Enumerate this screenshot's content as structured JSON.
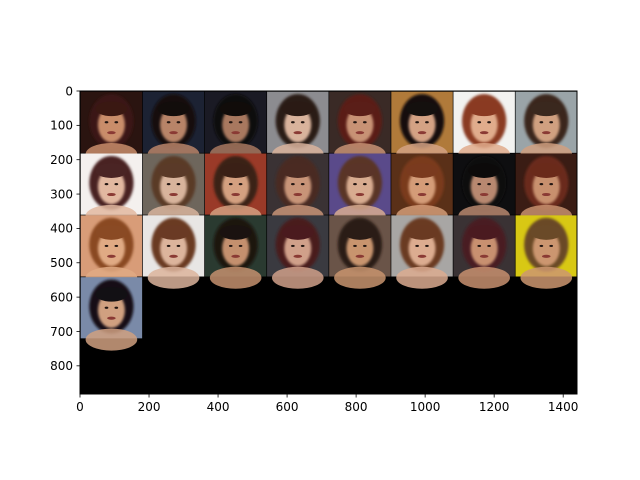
{
  "chart_data": {
    "type": "image_grid",
    "title": "",
    "xlabel": "",
    "ylabel": "",
    "xlim": [
      0,
      1440
    ],
    "ylim": [
      882,
      0
    ],
    "x_ticks": [
      0,
      200,
      400,
      600,
      800,
      1000,
      1200,
      1400
    ],
    "y_ticks": [
      0,
      100,
      200,
      300,
      400,
      500,
      600,
      700,
      800
    ],
    "grid": false,
    "grid_layout": {
      "columns": 8,
      "rows": 4,
      "tile_size": 180,
      "padding": 2,
      "images_shown": 25,
      "empty_cells_color": "#000000"
    },
    "tiles": [
      {
        "row": 0,
        "col": 0,
        "bg": "#2a1410",
        "skin": "#c98d6b",
        "hair": "#3a1812"
      },
      {
        "row": 0,
        "col": 1,
        "bg": "#1c2233",
        "skin": "#b88468",
        "hair": "#120d0b"
      },
      {
        "row": 0,
        "col": 2,
        "bg": "#1a1a24",
        "skin": "#a8785f",
        "hair": "#110c0a"
      },
      {
        "row": 0,
        "col": 3,
        "bg": "#8c8c90",
        "skin": "#d9b39c",
        "hair": "#2a1a14"
      },
      {
        "row": 0,
        "col": 4,
        "bg": "#3a2a26",
        "skin": "#c89274",
        "hair": "#5a1e18"
      },
      {
        "row": 0,
        "col": 5,
        "bg": "#b07a3a",
        "skin": "#d4a284",
        "hair": "#14100e"
      },
      {
        "row": 0,
        "col": 6,
        "bg": "#f2f2f0",
        "skin": "#e0ac8c",
        "hair": "#8a3a22"
      },
      {
        "row": 0,
        "col": 7,
        "bg": "#9aa4a8",
        "skin": "#d0a080",
        "hair": "#3a281e"
      },
      {
        "row": 1,
        "col": 0,
        "bg": "#f4f0ee",
        "skin": "#e2b8a0",
        "hair": "#4a2424"
      },
      {
        "row": 1,
        "col": 1,
        "bg": "#6e665c",
        "skin": "#d8b49c",
        "hair": "#5a3a28"
      },
      {
        "row": 1,
        "col": 2,
        "bg": "#9a3a28",
        "skin": "#d4a080",
        "hair": "#3a2016"
      },
      {
        "row": 1,
        "col": 3,
        "bg": "#3a3234",
        "skin": "#c89478",
        "hair": "#4a2a22"
      },
      {
        "row": 1,
        "col": 4,
        "bg": "#5a4a8a",
        "skin": "#d8ac90",
        "hair": "#5a3428"
      },
      {
        "row": 1,
        "col": 5,
        "bg": "#5a3018",
        "skin": "#d49c78",
        "hair": "#7a3a1e"
      },
      {
        "row": 1,
        "col": 6,
        "bg": "#0e0e10",
        "skin": "#b88870",
        "hair": "#0c0a0a"
      },
      {
        "row": 1,
        "col": 7,
        "bg": "#3a1c14",
        "skin": "#c8906e",
        "hair": "#6a2a1a"
      },
      {
        "row": 2,
        "col": 0,
        "bg": "#d89c78",
        "skin": "#e0aa84",
        "hair": "#8a4a24"
      },
      {
        "row": 2,
        "col": 1,
        "bg": "#e8e6e4",
        "skin": "#dcb49c",
        "hair": "#6a3a24"
      },
      {
        "row": 2,
        "col": 2,
        "bg": "#2a3a30",
        "skin": "#c4906e",
        "hair": "#1a1210"
      },
      {
        "row": 2,
        "col": 3,
        "bg": "#3a3a40",
        "skin": "#d0a08a",
        "hair": "#4a1a1e"
      },
      {
        "row": 2,
        "col": 4,
        "bg": "#6a5448",
        "skin": "#c8946e",
        "hair": "#2a1c16"
      },
      {
        "row": 2,
        "col": 5,
        "bg": "#a8a6a4",
        "skin": "#dcac90",
        "hair": "#6a3a22"
      },
      {
        "row": 2,
        "col": 6,
        "bg": "#3a3234",
        "skin": "#c89070",
        "hair": "#4a1a20"
      },
      {
        "row": 2,
        "col": 7,
        "bg": "#d8c814",
        "skin": "#cc9670",
        "hair": "#6a4a28"
      },
      {
        "row": 3,
        "col": 0,
        "bg": "#7a8aa8",
        "skin": "#d0a080",
        "hair": "#121014"
      }
    ]
  }
}
